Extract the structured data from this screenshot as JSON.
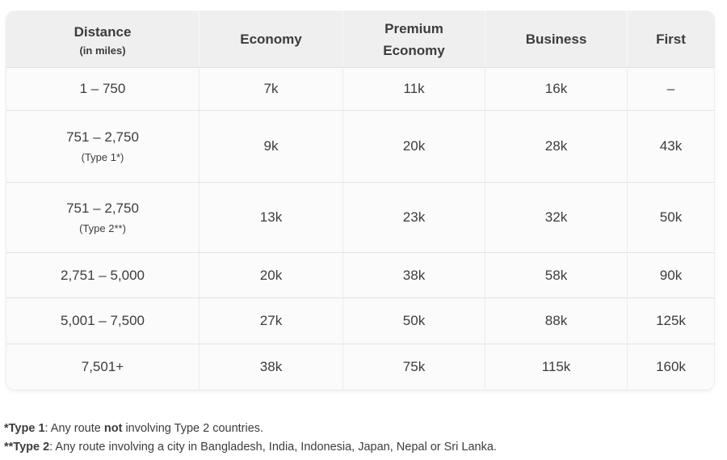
{
  "chart_data": {
    "type": "table",
    "header": {
      "distance_label": "Distance",
      "distance_sublabel": "(in miles)",
      "economy": "Economy",
      "premium_economy": "Premium Economy",
      "business": "Business",
      "first": "First"
    },
    "columns": [
      "Distance (in miles)",
      "Economy",
      "Premium Economy",
      "Business",
      "First"
    ],
    "rows": [
      {
        "distance": "1 – 750",
        "distance_note": "",
        "economy": "7k",
        "premium_economy": "11k",
        "business": "16k",
        "first": "–"
      },
      {
        "distance": "751 – 2,750",
        "distance_note": "(Type 1*)",
        "economy": "9k",
        "premium_economy": "20k",
        "business": "28k",
        "first": "43k"
      },
      {
        "distance": "751 – 2,750",
        "distance_note": "(Type 2**)",
        "economy": "13k",
        "premium_economy": "23k",
        "business": "32k",
        "first": "50k"
      },
      {
        "distance": "2,751 – 5,000",
        "distance_note": "",
        "economy": "20k",
        "premium_economy": "38k",
        "business": "58k",
        "first": "90k"
      },
      {
        "distance": "5,001 – 7,500",
        "distance_note": "",
        "economy": "27k",
        "premium_economy": "50k",
        "business": "88k",
        "first": "125k"
      },
      {
        "distance": "7,501+",
        "distance_note": "",
        "economy": "38k",
        "premium_economy": "75k",
        "business": "115k",
        "first": "160k"
      }
    ]
  },
  "footnotes": [
    {
      "parts": [
        {
          "t": "*Type 1",
          "b": true
        },
        {
          "t": ": Any route ",
          "b": false
        },
        {
          "t": "not",
          "b": true
        },
        {
          "t": " involving Type 2 countries.",
          "b": false
        }
      ]
    },
    {
      "parts": [
        {
          "t": "**Type 2",
          "b": true
        },
        {
          "t": ": Any route involving a city in Bangladesh, India, Indonesia, Japan, Nepal or Sri Lanka.",
          "b": false
        }
      ]
    }
  ],
  "colors": {
    "page_bg": "#ffffff",
    "header_bg": "#efefef",
    "row_bg": "#fbfbfb",
    "row_border": "#e2e2e2",
    "col_border": "#ececec",
    "header_divider": "#f7f7f7",
    "text": "#3c3c3c"
  }
}
